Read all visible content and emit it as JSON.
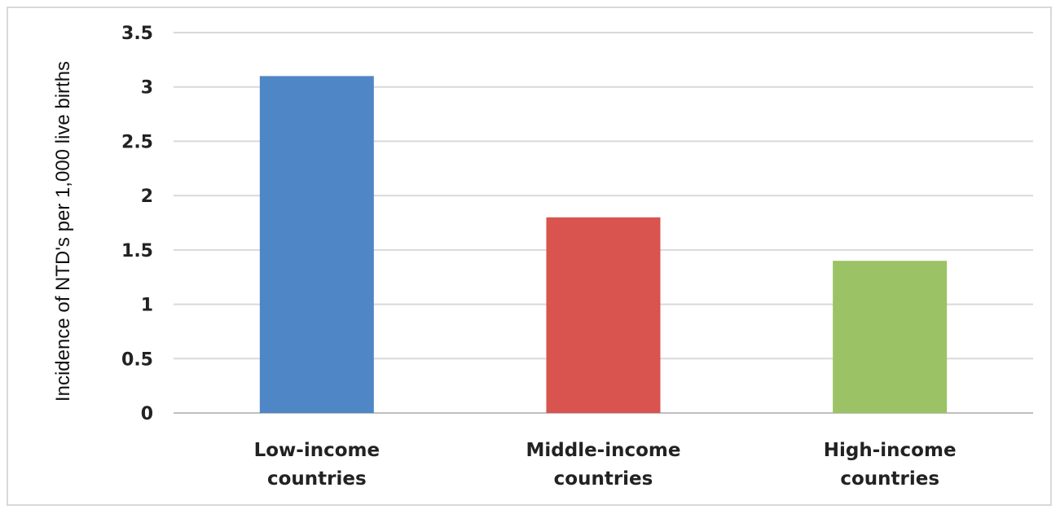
{
  "chart_data": {
    "type": "bar",
    "title": "",
    "xlabel": "",
    "ylabel": "Incidence of NTD's per 1,000 live births",
    "categories": [
      [
        "Low-income",
        "countries"
      ],
      [
        "Middle-income",
        "countries"
      ],
      [
        "High-income",
        "countries"
      ]
    ],
    "values": [
      3.1,
      1.8,
      1.4
    ],
    "bar_colors": [
      "#4f86c6",
      "#d9534f",
      "#9bc365"
    ],
    "ylim": [
      0,
      3.5
    ],
    "yticks": [
      0,
      0.5,
      1,
      1.5,
      2,
      2.5,
      3,
      3.5
    ],
    "ytick_labels": [
      "0",
      "0.5",
      "1",
      "1.5",
      "2",
      "2.5",
      "3",
      "3.5"
    ],
    "grid": true,
    "legend": "none"
  }
}
